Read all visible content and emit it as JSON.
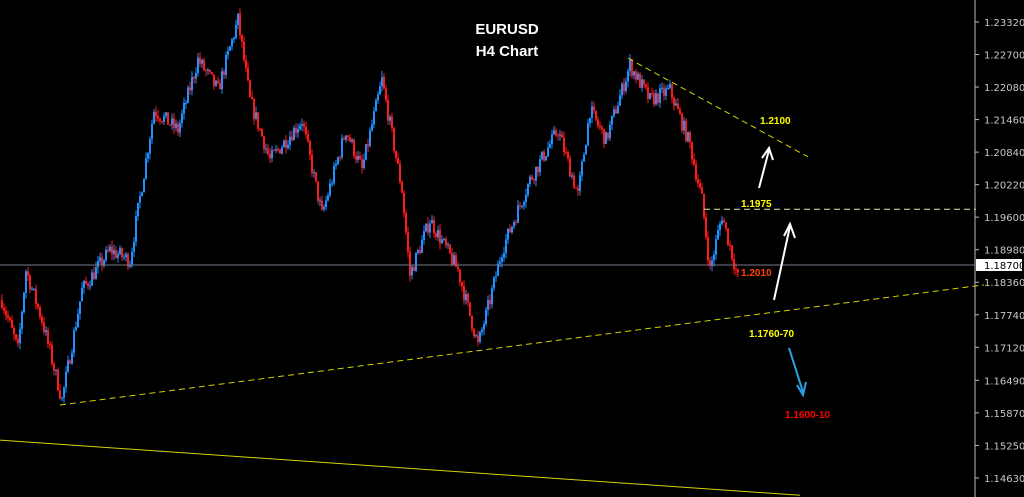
{
  "chart_data": {
    "type": "candlestick",
    "title": "EURUSD",
    "subtitle": "H4 Chart",
    "ylim": [
      1.143,
      1.236
    ],
    "y_ticks": [
      "1.23320",
      "1.22700",
      "1.22080",
      "1.21460",
      "1.20840",
      "1.20220",
      "1.19600",
      "1.18980",
      "1.18360",
      "1.17740",
      "1.17120",
      "1.16490",
      "1.15870",
      "1.15250",
      "1.14630"
    ],
    "current_price": "1.18700",
    "close_path": [
      [
        0,
        1.1802
      ],
      [
        4,
        1.1707
      ],
      [
        6,
        1.1859
      ],
      [
        10,
        1.1764
      ],
      [
        15,
        1.1612
      ],
      [
        20,
        1.1821
      ],
      [
        27,
        1.1897
      ],
      [
        32,
        1.1878
      ],
      [
        36,
        1.2069
      ],
      [
        38,
        1.2164
      ],
      [
        44,
        1.2126
      ],
      [
        49,
        1.226
      ],
      [
        54,
        1.2202
      ],
      [
        59,
        1.2336
      ],
      [
        62,
        1.2183
      ],
      [
        67,
        1.2069
      ],
      [
        75,
        1.2145
      ],
      [
        80,
        1.1964
      ],
      [
        86,
        1.2126
      ],
      [
        90,
        1.205
      ],
      [
        95,
        1.2221
      ],
      [
        100,
        1.2012
      ],
      [
        102,
        1.185
      ],
      [
        107,
        1.1955
      ],
      [
        114,
        1.1859
      ],
      [
        119,
        1.1716
      ],
      [
        122,
        1.1802
      ],
      [
        125,
        1.1897
      ],
      [
        132,
        1.2031
      ],
      [
        139,
        1.2126
      ],
      [
        144,
        1.2002
      ],
      [
        147,
        1.2164
      ],
      [
        151,
        1.2107
      ],
      [
        157,
        1.225
      ],
      [
        162,
        1.2183
      ],
      [
        167,
        1.2202
      ],
      [
        172,
        1.2098
      ],
      [
        175,
        1.1993
      ],
      [
        177,
        1.1859
      ],
      [
        180,
        1.1964
      ],
      [
        184,
        1.1844
      ]
    ],
    "colors": {
      "up": "#1e90ff",
      "down": "#ff1a1a",
      "trendline": "#d4d400"
    },
    "trendlines": [
      {
        "from": [
          15,
          1.1602
        ],
        "to": [
          246,
          1.1831
        ],
        "style": "dashed"
      },
      {
        "from": [
          157,
          1.2263
        ],
        "to": [
          202,
          1.2075
        ],
        "style": "dashed"
      },
      {
        "from": [
          176,
          1.1975
        ],
        "to": [
          244,
          1.1975
        ],
        "style": "dashed"
      },
      {
        "from": [
          0,
          1.1535
        ],
        "to": [
          200,
          1.143
        ],
        "style": "solid"
      }
    ],
    "annotations": [
      {
        "text": "1.2100",
        "color": "#ffff00"
      },
      {
        "text": "1.1975",
        "color": "#ffff00"
      },
      {
        "text": "1.2010",
        "color": "#ff4500"
      },
      {
        "text": "1.1760-70",
        "color": "#ffff00"
      },
      {
        "text": "1.1600-10",
        "color": "#ff0000"
      }
    ]
  }
}
